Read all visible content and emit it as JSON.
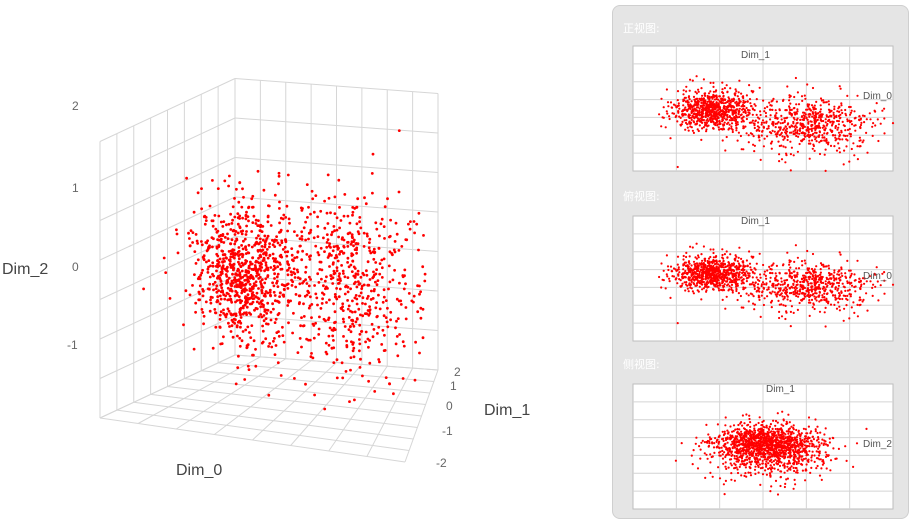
{
  "main_chart": {
    "axis_titles": {
      "x": "Dim_0",
      "y": "Dim_1",
      "z": "Dim_2"
    },
    "z_ticks": [
      "2",
      "1",
      "0",
      "-1"
    ],
    "y_ticks": [
      "2",
      "1",
      "0",
      "-1",
      "-2"
    ]
  },
  "side_panel": {
    "views": [
      {
        "title": "正视图:",
        "axis_labels": [
          "Dim_1",
          "Dim_0"
        ]
      },
      {
        "title": "俯视图:",
        "axis_labels": [
          "Dim_1",
          "Dim_0"
        ]
      },
      {
        "title": "侧视图:",
        "axis_labels": [
          "Dim_1",
          "Dim_2"
        ]
      }
    ]
  },
  "chart_data": {
    "type": "scatter",
    "dimensions": [
      "Dim_0",
      "Dim_1",
      "Dim_2"
    ],
    "point_color": "#ff0000",
    "grid": true,
    "ranges": {
      "Dim_0": [
        -2,
        2
      ],
      "Dim_1": [
        -2,
        2
      ],
      "Dim_2": [
        -1.5,
        2
      ]
    },
    "distribution": {
      "approx_point_count": 2000,
      "clusters": [
        {
          "share": 0.55,
          "center": [
            -0.9,
            0.2,
            0.0
          ],
          "spread": [
            0.35,
            0.35,
            0.45
          ]
        },
        {
          "share": 0.45,
          "center": [
            0.8,
            -0.3,
            0.2
          ],
          "spread": [
            0.6,
            0.5,
            0.55
          ]
        }
      ]
    }
  }
}
